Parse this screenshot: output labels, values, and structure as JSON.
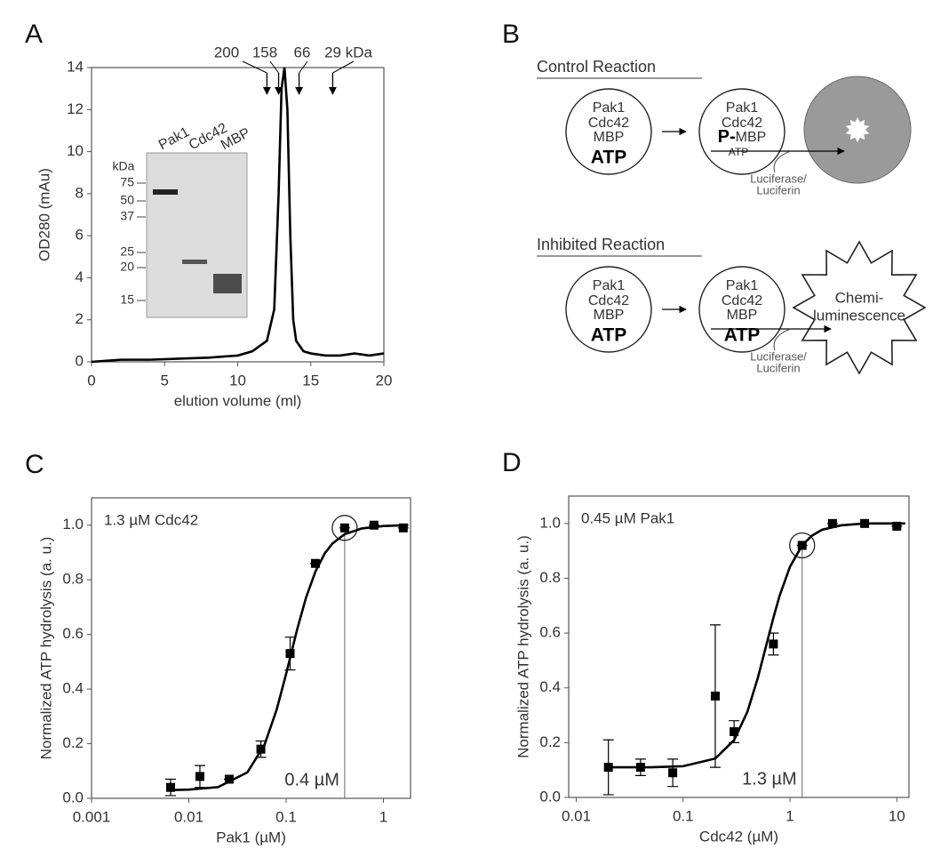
{
  "chart_data": [
    {
      "type": "line",
      "panel": "A",
      "xlabel": "elution volume (ml)",
      "ylabel": "OD280 (mAu)",
      "xlim": [
        0,
        20
      ],
      "ylim": [
        0,
        14
      ],
      "xticks": [
        0,
        5,
        10,
        15,
        20
      ],
      "yticks": [
        0,
        2,
        4,
        6,
        8,
        10,
        12,
        14
      ],
      "series": [
        {
          "style": "line",
          "color": "#000000",
          "x": [
            0,
            2,
            4,
            6,
            8,
            10,
            11,
            12,
            12.5,
            12.8,
            13.0,
            13.2,
            13.4,
            13.6,
            13.8,
            14,
            14.5,
            15,
            16,
            17,
            18,
            19,
            20
          ],
          "values": [
            0,
            0.1,
            0.1,
            0.15,
            0.2,
            0.3,
            0.5,
            1,
            2.5,
            8,
            13,
            14,
            12,
            6,
            2,
            1,
            0.5,
            0.4,
            0.3,
            0.3,
            0.4,
            0.3,
            0.4
          ]
        }
      ],
      "markers": [
        {
          "x": 12.0,
          "label": "200"
        },
        {
          "x": 12.8,
          "label": "158"
        },
        {
          "x": 14.2,
          "label": "66"
        },
        {
          "x": 16.5,
          "label": "29 kDa"
        }
      ],
      "inset": {
        "lanes": [
          "Pak1",
          "Cdc42",
          "MBP"
        ],
        "unit": "kDa",
        "ladder": [
          75,
          50,
          37,
          25,
          20,
          15
        ]
      }
    },
    {
      "type": "scatter",
      "panel": "C",
      "xlabel": "Pak1 (µM)",
      "ylabel": "Normalized ATP hydrolysis (a. u.)",
      "xlog": true,
      "xlim": [
        0.001,
        1.9
      ],
      "ylim": [
        0,
        1.1
      ],
      "xticks": [
        0.001,
        0.01,
        0.1,
        1
      ],
      "yticks": [
        {
          "value": 0,
          "label": "0.0"
        },
        {
          "value": 0.2,
          "label": "0.2"
        },
        {
          "value": 0.4,
          "label": "0.4"
        },
        {
          "value": 0.6,
          "label": "0.6"
        },
        {
          "value": 0.8,
          "label": "0.8"
        },
        {
          "value": 1,
          "label": "1.0"
        }
      ],
      "annotation": "1.3 µM Cdc42",
      "threshold": {
        "x": 0.4,
        "y": 0.99,
        "label": "0.4 µM"
      },
      "series": [
        {
          "style": "markers",
          "color": "#000000",
          "x": [
            0.0065,
            0.013,
            0.026,
            0.055,
            0.11,
            0.2,
            0.4,
            0.8,
            1.6
          ],
          "values": [
            0.04,
            0.08,
            0.07,
            0.18,
            0.53,
            0.86,
            0.99,
            1.0,
            0.99
          ],
          "errors": [
            0.03,
            0.04,
            0,
            0.03,
            0.06,
            0,
            0,
            0,
            0
          ]
        },
        {
          "style": "line",
          "color": "#000000",
          "x": [
            0.006,
            0.01,
            0.02,
            0.04,
            0.06,
            0.08,
            0.1,
            0.13,
            0.16,
            0.2,
            0.25,
            0.3,
            0.4,
            0.6,
            1,
            1.8
          ],
          "values": [
            0.03,
            0.032,
            0.041,
            0.095,
            0.196,
            0.325,
            0.455,
            0.619,
            0.734,
            0.83,
            0.897,
            0.933,
            0.967,
            0.988,
            0.997,
            1.0
          ]
        }
      ]
    },
    {
      "type": "scatter",
      "panel": "D",
      "xlabel": "Cdc42 (µM)",
      "ylabel": "Normalized ATP hydrolysis (a. u.)",
      "xlog": true,
      "xlim": [
        0.0085,
        13
      ],
      "ylim": [
        0,
        1.1
      ],
      "xticks": [
        0.01,
        0.1,
        1,
        10
      ],
      "yticks": [
        {
          "value": 0,
          "label": "0.0"
        },
        {
          "value": 0.2,
          "label": "0.2"
        },
        {
          "value": 0.4,
          "label": "0.4"
        },
        {
          "value": 0.6,
          "label": "0.6"
        },
        {
          "value": 0.8,
          "label": "0.8"
        },
        {
          "value": 1,
          "label": "1.0"
        }
      ],
      "annotation": "0.45 µM Pak1",
      "threshold": {
        "x": 1.3,
        "y": 0.92,
        "label": "1.3 µM"
      },
      "series": [
        {
          "style": "markers",
          "color": "#000000",
          "x": [
            0.02,
            0.04,
            0.08,
            0.2,
            0.3,
            0.7,
            1.3,
            2.5,
            5,
            10
          ],
          "values": [
            0.11,
            0.11,
            0.09,
            0.37,
            0.24,
            0.56,
            0.92,
            1.0,
            1.0,
            0.99
          ],
          "errors": [
            0.1,
            0.03,
            0.05,
            0.26,
            0.04,
            0.04,
            0,
            0,
            0,
            0
          ]
        },
        {
          "style": "line",
          "color": "#000000",
          "x": [
            0.02,
            0.05,
            0.1,
            0.2,
            0.3,
            0.4,
            0.5,
            0.6,
            0.7,
            0.8,
            1,
            1.3,
            1.6,
            2,
            3,
            5,
            10,
            12
          ],
          "values": [
            0.11,
            0.11,
            0.114,
            0.142,
            0.209,
            0.313,
            0.436,
            0.555,
            0.656,
            0.736,
            0.842,
            0.92,
            0.955,
            0.977,
            0.993,
            1.0,
            1.0,
            1.0
          ]
        }
      ]
    }
  ],
  "diagram": {
    "panel": "B",
    "control": {
      "title": "Control Reaction",
      "before": [
        "Pak1",
        "Cdc42",
        "MBP",
        "ATP"
      ],
      "after": [
        "Pak1",
        "Cdc42",
        "P-",
        "MBP",
        "ATP"
      ],
      "detection": [
        "Luciferase/",
        "Luciferin"
      ]
    },
    "inhibited": {
      "title": "Inhibited Reaction",
      "before": [
        "Pak1",
        "Cdc42",
        "MBP",
        "ATP"
      ],
      "after": [
        "Pak1",
        "Cdc42",
        "MBP",
        "ATP"
      ],
      "detection": [
        "Luciferase/",
        "Luciferin"
      ],
      "result": [
        "Chemi-",
        "luminescence"
      ]
    }
  }
}
